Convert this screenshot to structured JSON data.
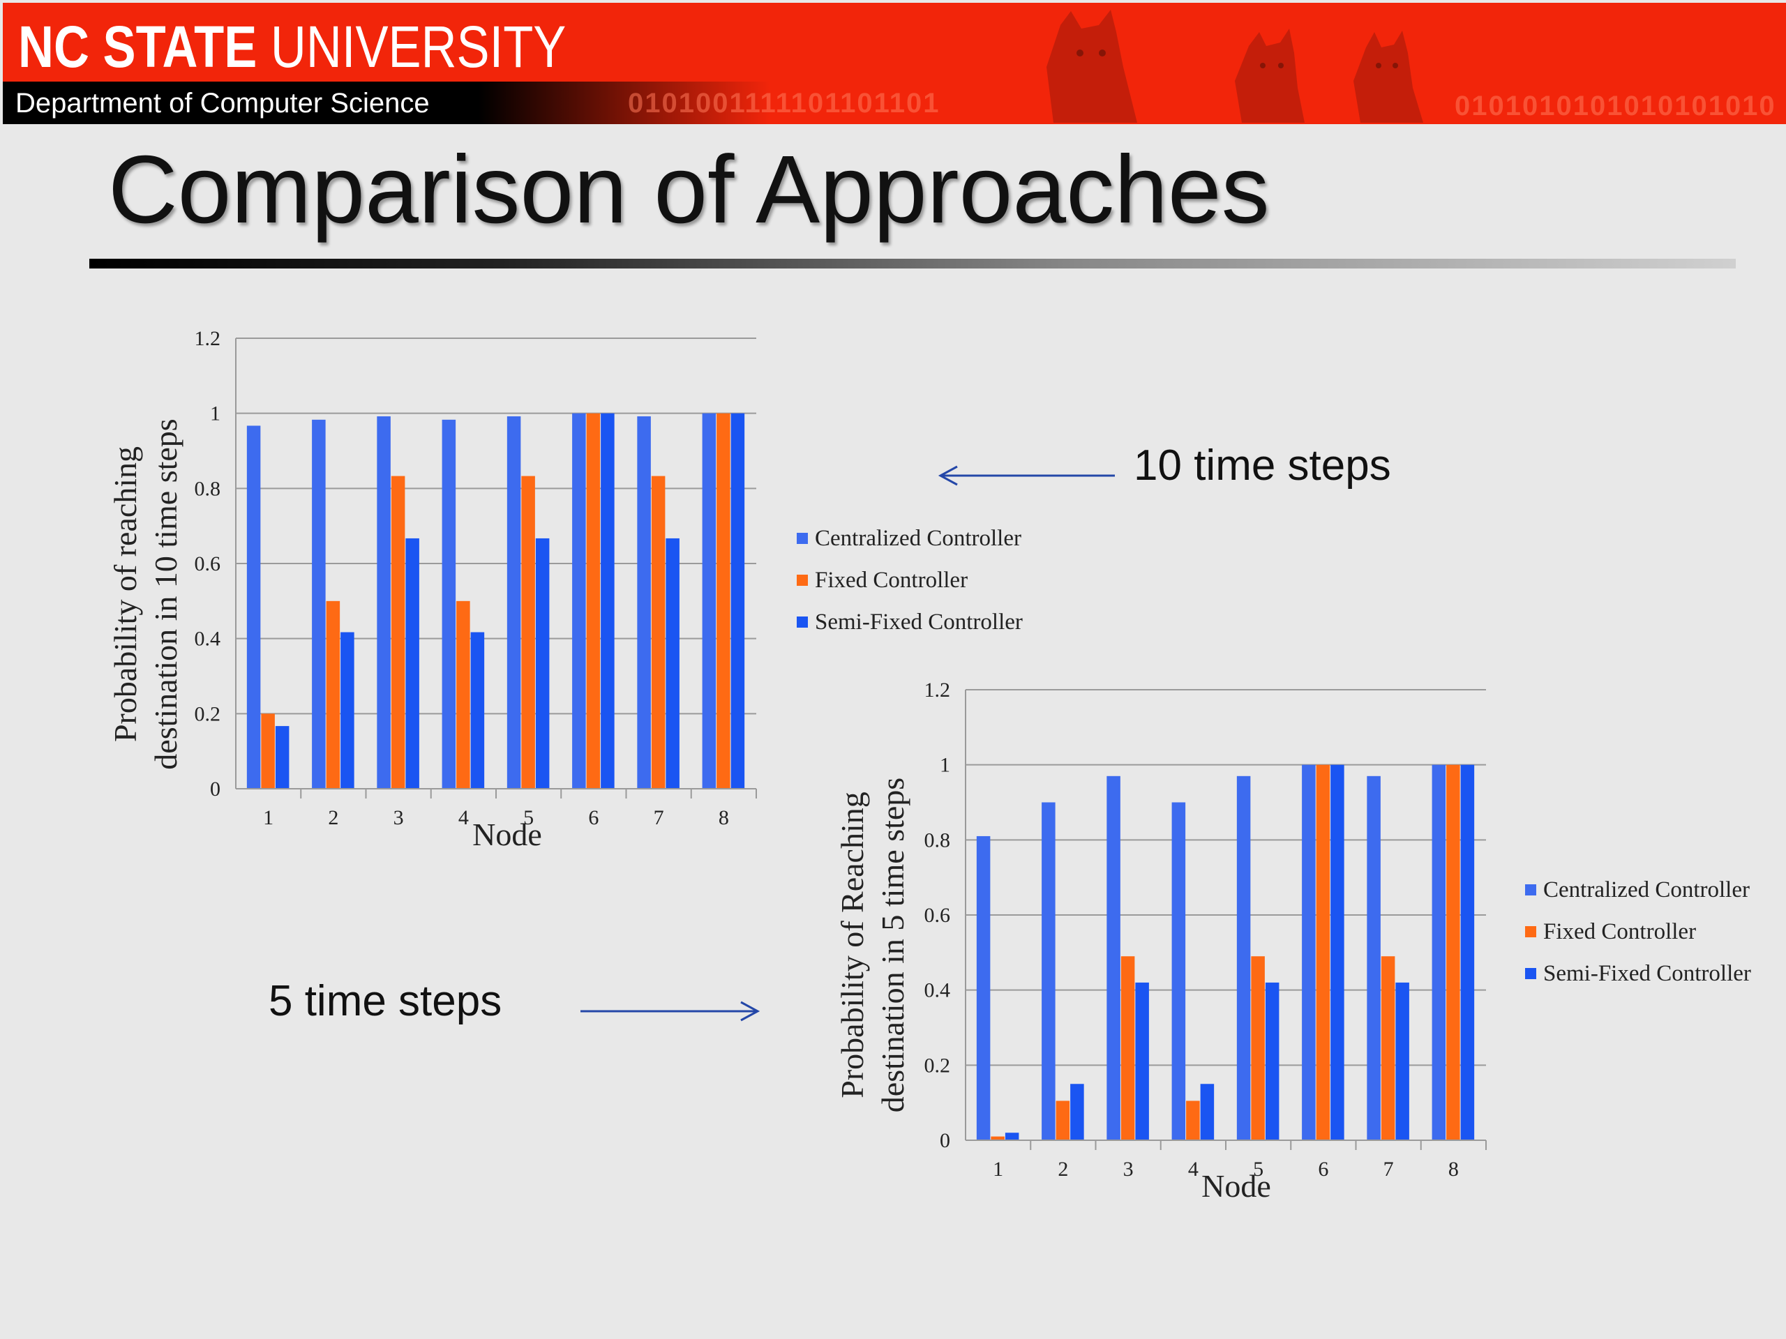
{
  "header": {
    "university_bold": "NC STATE",
    "university_light": "UNIVERSITY",
    "department": "Department of Computer Science",
    "binary_1": "0101001111101101101",
    "binary_2": "0101010101010101010"
  },
  "title": "Comparison of Approaches",
  "annotations": {
    "ten_steps": "10 time steps",
    "five_steps": "5 time steps"
  },
  "colors": {
    "centralized": "#3d6bef",
    "fixed": "#fe6a14",
    "semifixed": "#1a55f2",
    "grid": "#9a9a9a",
    "arrow": "#2447a8"
  },
  "chart_data": [
    {
      "type": "bar",
      "title": "",
      "xlabel": "Node",
      "ylabel_line1": "Probability of reaching",
      "ylabel_line2": "destination in 10 time steps",
      "categories": [
        "1",
        "2",
        "3",
        "4",
        "5",
        "6",
        "7",
        "8"
      ],
      "ylim": [
        0,
        1.2
      ],
      "yticks": [
        "0",
        "0.2",
        "0.4",
        "0.6",
        "0.8",
        "1",
        "1.2"
      ],
      "legend_position": "right",
      "series": [
        {
          "name": "Centralized Controller",
          "values": [
            0.967,
            0.983,
            0.992,
            0.983,
            0.992,
            1,
            0.992,
            1
          ]
        },
        {
          "name": "Fixed Controller",
          "values": [
            0.2,
            0.5,
            0.833,
            0.5,
            0.833,
            1,
            0.833,
            1
          ]
        },
        {
          "name": "Semi-Fixed Controller",
          "values": [
            0.167,
            0.417,
            0.667,
            0.417,
            0.667,
            1,
            0.667,
            1
          ]
        }
      ]
    },
    {
      "type": "bar",
      "title": "",
      "xlabel": "Node",
      "ylabel_line1": "Probability of Reaching",
      "ylabel_line2": "destination in 5 time steps",
      "categories": [
        "1",
        "2",
        "3",
        "4",
        "5",
        "6",
        "7",
        "8"
      ],
      "ylim": [
        0,
        1.2
      ],
      "yticks": [
        "0",
        "0.2",
        "0.4",
        "0.6",
        "0.8",
        "1",
        "1.2"
      ],
      "legend_position": "right",
      "series": [
        {
          "name": "Centralized Controller",
          "values": [
            0.81,
            0.9,
            0.97,
            0.9,
            0.97,
            1,
            0.97,
            1
          ]
        },
        {
          "name": "Fixed Controller",
          "values": [
            0.01,
            0.105,
            0.49,
            0.105,
            0.49,
            1,
            0.49,
            1
          ]
        },
        {
          "name": "Semi-Fixed Controller",
          "values": [
            0.02,
            0.15,
            0.42,
            0.15,
            0.42,
            1,
            0.42,
            1
          ]
        }
      ]
    }
  ]
}
